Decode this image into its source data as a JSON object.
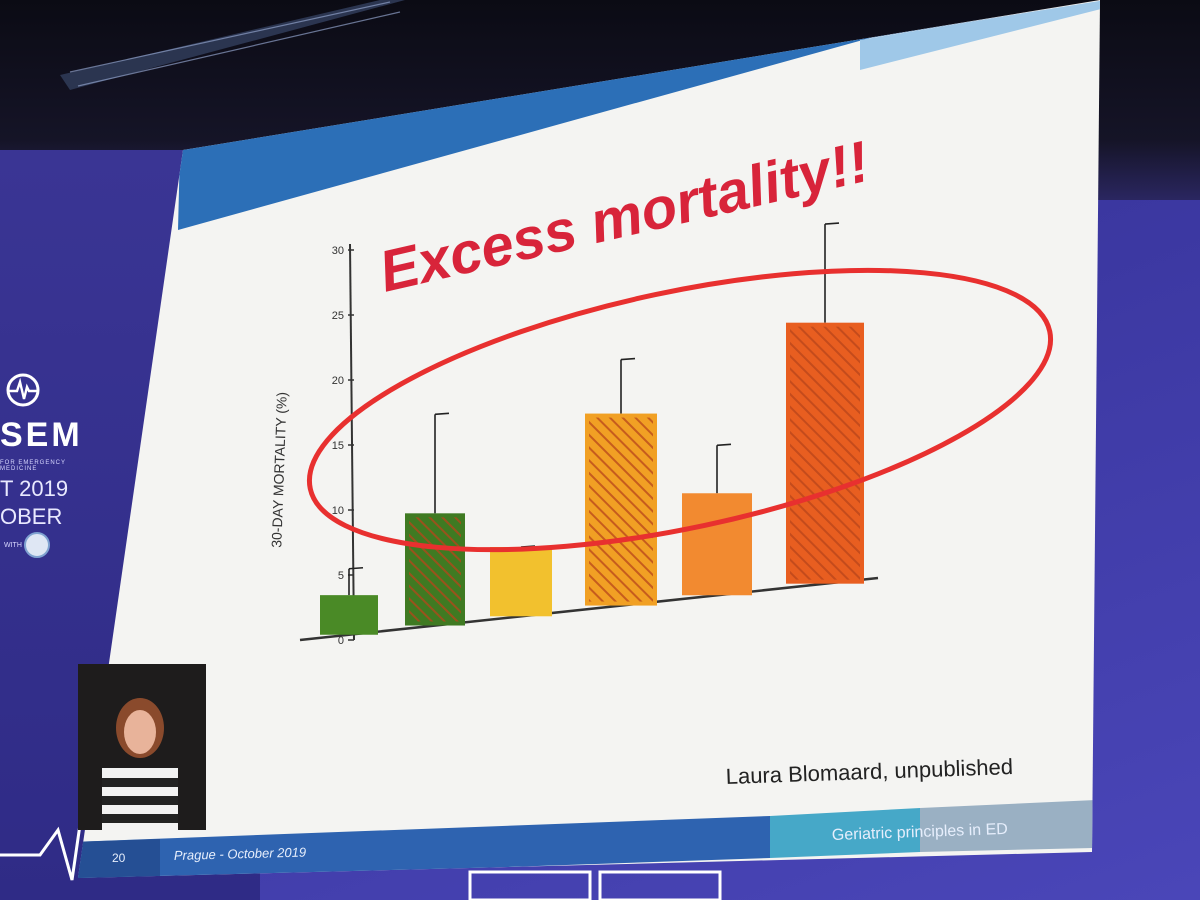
{
  "slide": {
    "title": "Excess mortality!!",
    "source_note": "Laura Blomaard, unpublished",
    "footer": {
      "page_number": "20",
      "event": "Prague - October 2019",
      "section": "Geriatric principles in ED"
    }
  },
  "conference": {
    "name": "SEM",
    "tagline": "FOR EMERGENCY MEDICINE",
    "year": "T 2019",
    "month": "OBER",
    "with_label": "WITH"
  },
  "chart_data": {
    "type": "bar",
    "ylabel": "30-DAY MORTALITY (%)",
    "ylim": [
      0,
      30
    ],
    "yticks": [
      0,
      5,
      10,
      15,
      20,
      25,
      30
    ],
    "values": [
      3,
      8.5,
      5.5,
      16,
      8.5,
      22.5
    ],
    "error_upper": [
      5,
      16,
      5.5,
      20.5,
      12.5,
      31
    ],
    "colors": [
      "#4a8a26",
      "#3f7a22",
      "#f2c12e",
      "#f1a024",
      "#f28a30",
      "#e85e20"
    ],
    "hatched": [
      false,
      true,
      false,
      true,
      false,
      true
    ],
    "annotation": "ellipse"
  },
  "colors": {
    "title_red": "#d8243a",
    "ellipse_red": "#e8302f",
    "header_blue": "#2c6fb7",
    "footer_blue": "#2e63b0",
    "footer_teal": "#46a8c8"
  }
}
